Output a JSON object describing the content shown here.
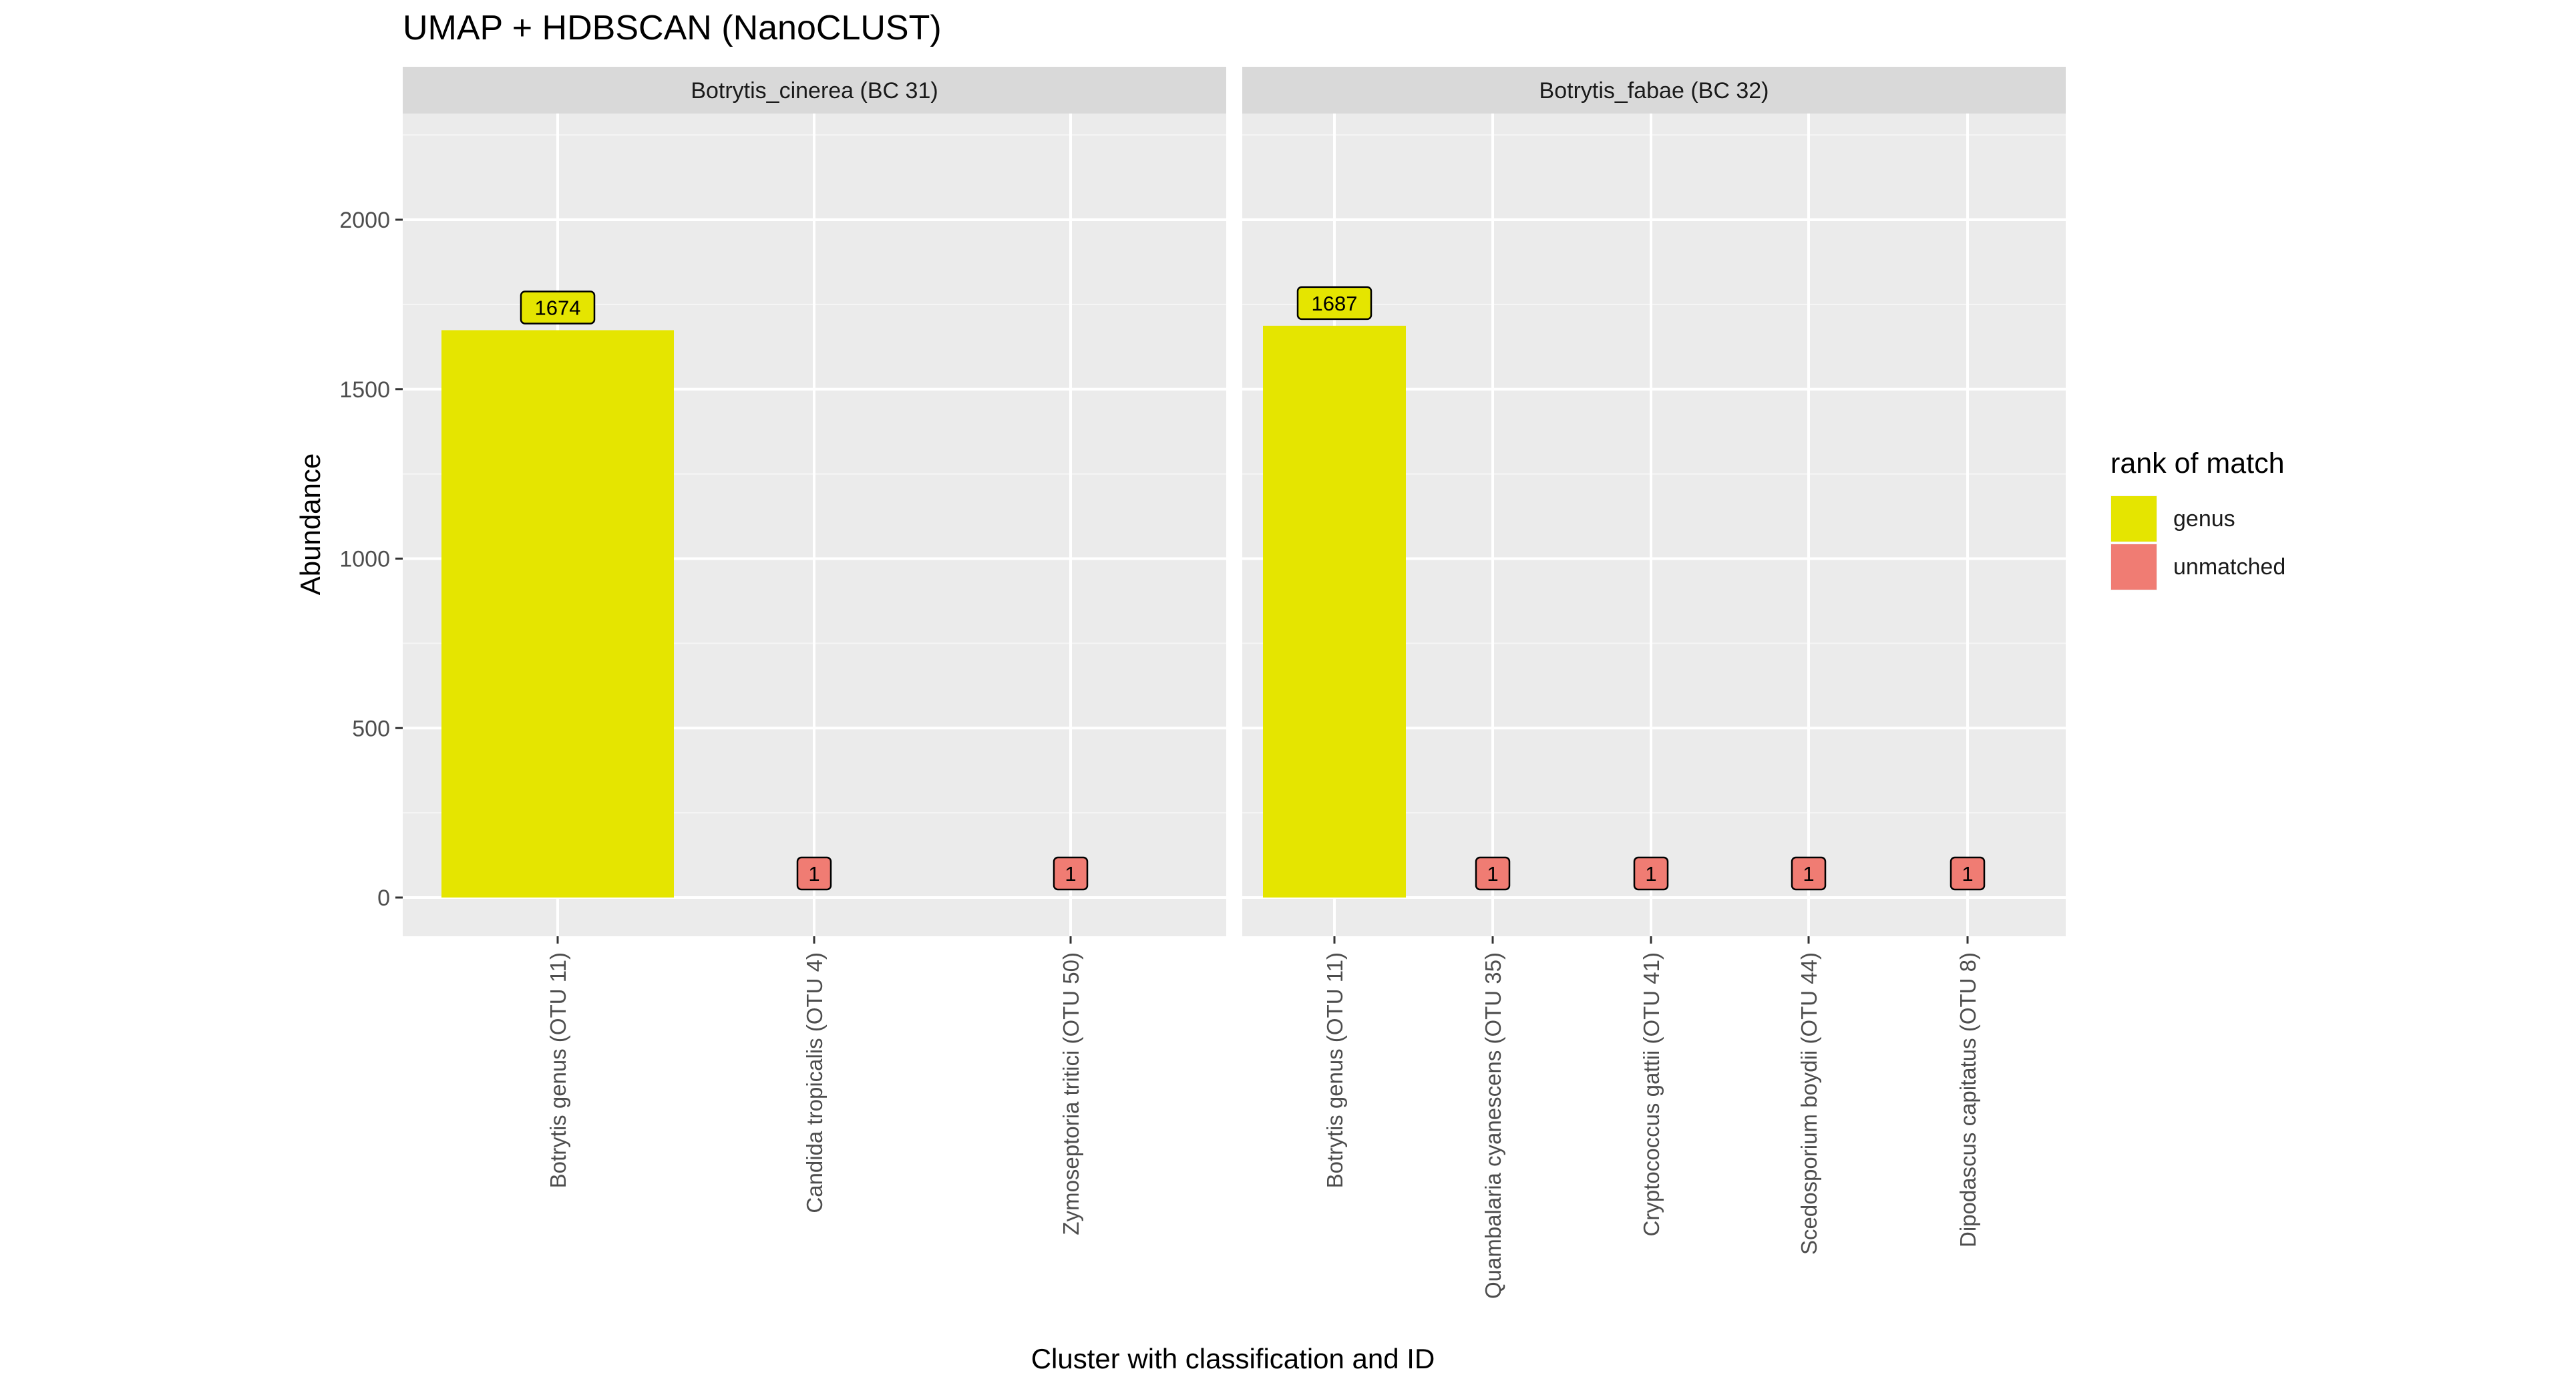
{
  "chart_data": {
    "type": "bar",
    "title": "UMAP + HDBSCAN (NanoCLUST)",
    "xlabel": "Cluster with classification and ID",
    "ylabel": "Abundance",
    "ylim": [
      0,
      2300
    ],
    "yticks": [
      0,
      500,
      1000,
      1500,
      2000
    ],
    "grid": true,
    "legend": {
      "title": "rank of match",
      "placement": "right",
      "entries": [
        {
          "label": "genus",
          "color": "#E5E500"
        },
        {
          "label": "unmatched",
          "color": "#F07C73"
        }
      ]
    },
    "facets": [
      {
        "name": "Botrytis_cinerea (BC 31)",
        "categories": [
          "Botrytis genus (OTU 11)",
          "Candida tropicalis (OTU 4)",
          "Zymoseptoria tritici (OTU 50)"
        ],
        "values": [
          1674,
          1,
          1
        ],
        "rank": [
          "genus",
          "unmatched",
          "unmatched"
        ]
      },
      {
        "name": "Botrytis_fabae (BC 32)",
        "categories": [
          "Botrytis genus (OTU 11)",
          "Quambalaria cyanescens (OTU 35)",
          "Cryptococcus gattii (OTU 41)",
          "Scedosporium boydii (OTU 44)",
          "Dipodascus capitatus (OTU 8)"
        ],
        "values": [
          1687,
          1,
          1,
          1,
          1
        ],
        "rank": [
          "genus",
          "unmatched",
          "unmatched",
          "unmatched",
          "unmatched"
        ]
      }
    ]
  }
}
